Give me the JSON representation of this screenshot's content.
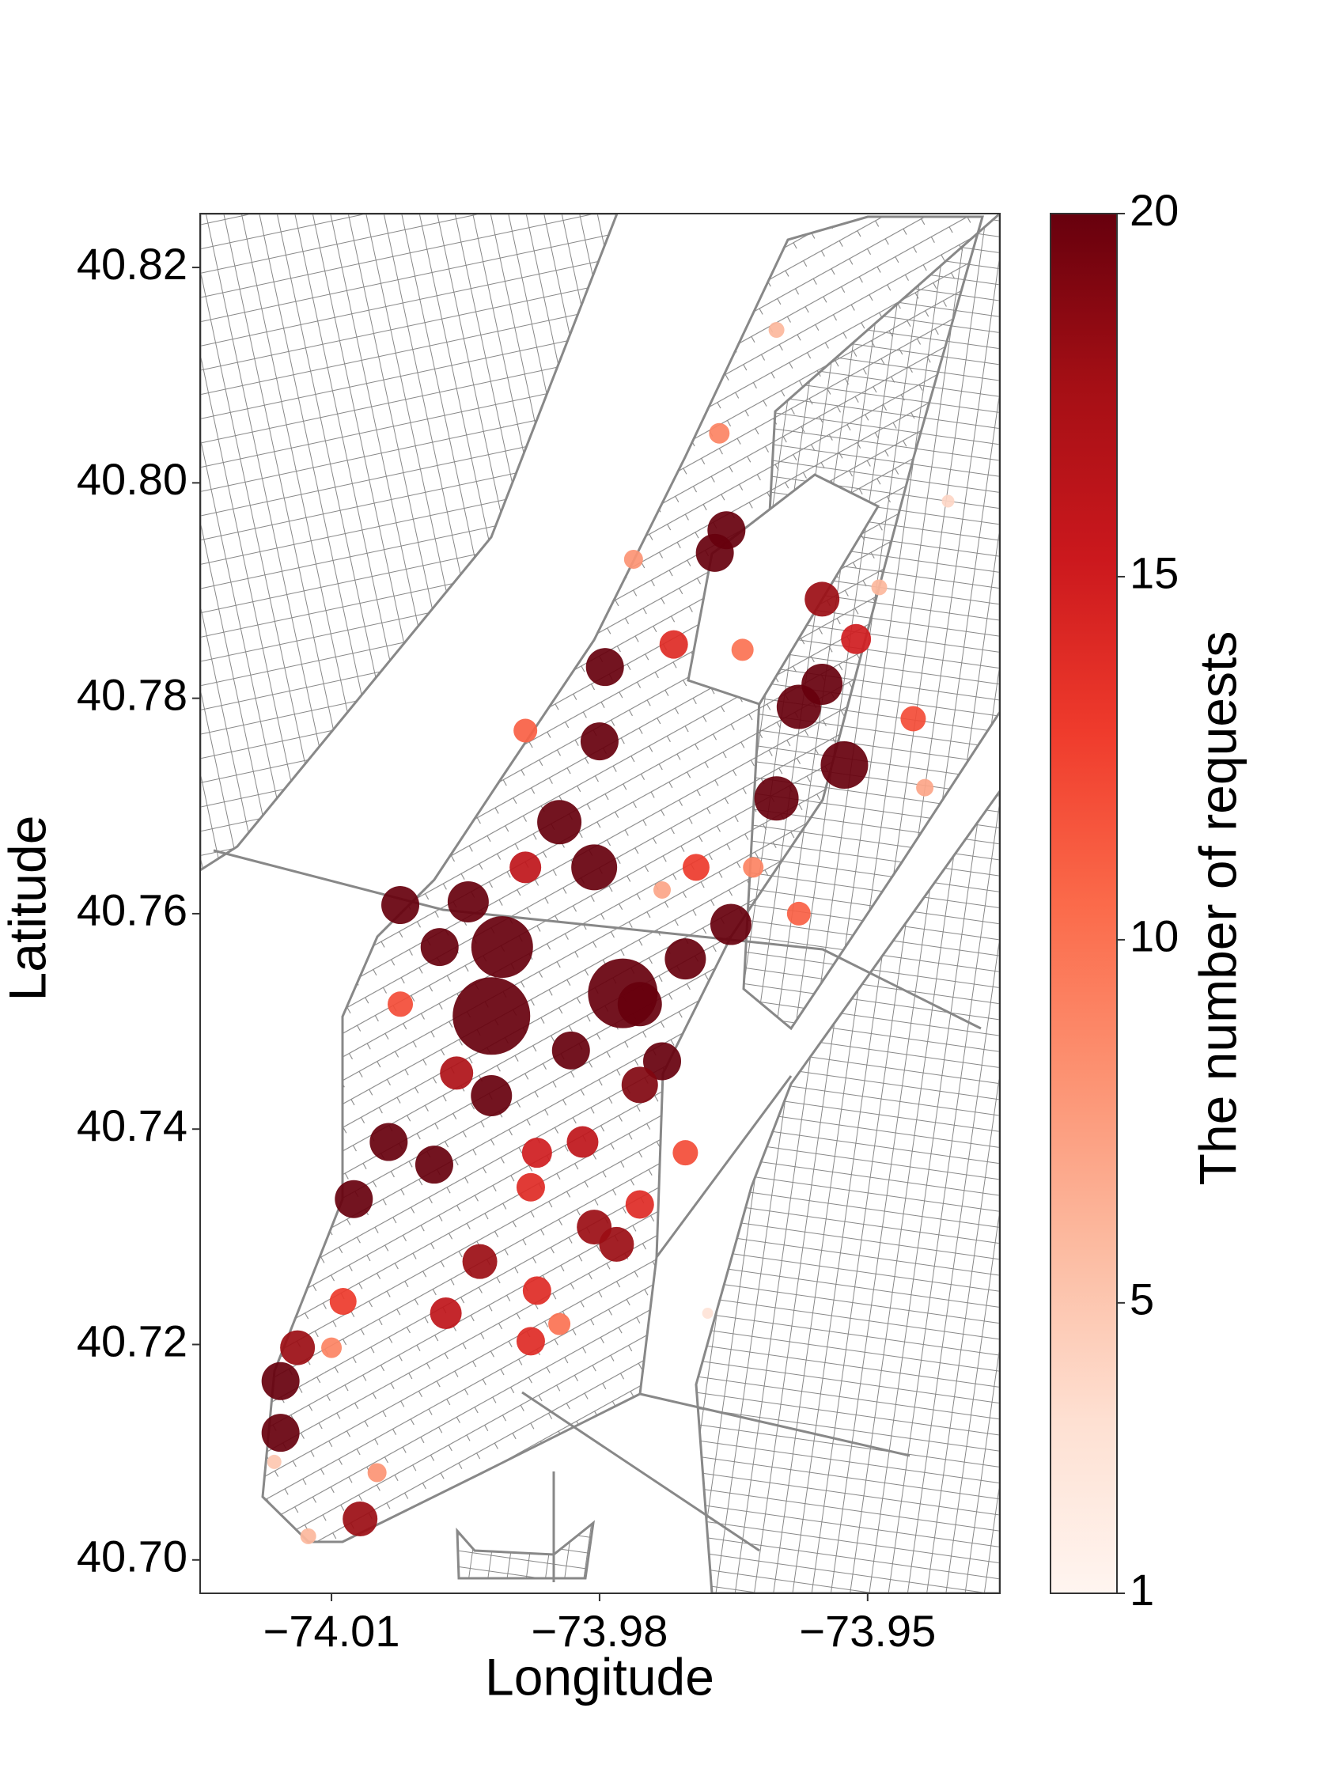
{
  "chart_data": {
    "type": "scatter",
    "x_label": "Longitude",
    "y_label": "Latitude",
    "xlim": [
      -74.0247,
      -73.9352
    ],
    "ylim": [
      40.6969,
      40.825
    ],
    "xticks": [
      {
        "value": -74.01,
        "label": "−74.01"
      },
      {
        "value": -73.98,
        "label": "−73.98"
      },
      {
        "value": -73.95,
        "label": "−73.95"
      }
    ],
    "yticks": [
      {
        "value": 40.7,
        "label": "40.70"
      },
      40.72,
      40.74,
      40.76,
      40.78,
      {
        "value": 40.8,
        "label": "40.80"
      },
      40.82
    ],
    "colormap": "Reds",
    "clim": [
      1,
      20
    ],
    "cticks": [
      1,
      5,
      10,
      15,
      20
    ],
    "colorbar_label": "The number of requests",
    "series": [
      {
        "x": [
          -73.9921,
          -73.9909,
          -73.9774,
          -73.9806,
          -73.9947,
          -73.9845,
          -73.9526,
          -73.9577,
          -73.9551,
          -73.9602,
          -73.9653,
          -73.9704,
          -73.9755,
          -73.973,
          -73.9832,
          -73.9921,
          -73.9985,
          -74.0036,
          -74.0075,
          -74.0157,
          -74.0157,
          -74.0138,
          -74.0068,
          -74.0023,
          -73.9979,
          -73.9658,
          -73.9671,
          -73.9794,
          -73.98,
          -73.9781,
          -73.9806,
          -73.9755,
          -73.9877,
          -73.9934,
          -73.9972,
          -73.9877,
          -73.9762,
          -73.9717,
          -73.964,
          -73.9551,
          -73.9487,
          -73.9449,
          -73.9436,
          -73.941,
          -73.9883,
          -73.9819,
          -73.9704,
          -73.9755,
          -74.0087,
          -74.01,
          -74.0126,
          -74.0049,
          -74.0164,
          -73.9845,
          -73.987,
          -73.9679,
          -73.9602,
          -73.9666,
          -73.9577,
          -73.9692,
          -73.9883,
          -73.9628,
          -73.9513,
          -73.973,
          -74.0023,
          -73.996,
          -73.987
        ],
        "y": [
          40.7505,
          40.7569,
          40.7526,
          40.7643,
          40.7611,
          40.7685,
          40.7738,
          40.7792,
          40.7813,
          40.7707,
          40.759,
          40.7558,
          40.7516,
          40.7463,
          40.7473,
          40.7431,
          40.7367,
          40.7388,
          40.7335,
          40.7166,
          40.7118,
          40.7197,
          40.7038,
          40.7608,
          40.7569,
          40.7956,
          40.7935,
          40.7829,
          40.776,
          40.7293,
          40.7309,
          40.733,
          40.7346,
          40.7277,
          40.7229,
          40.7203,
          40.7929,
          40.785,
          40.7845,
          40.7892,
          40.7903,
          40.7781,
          40.7717,
          40.7983,
          40.777,
          40.7388,
          40.7378,
          40.7441,
          40.724,
          40.7197,
          40.7022,
          40.7081,
          40.7091,
          40.7219,
          40.725,
          40.7229,
          40.8142,
          40.8046,
          40.76,
          40.7643,
          40.7643,
          40.7643,
          40.7855,
          40.7622,
          40.7516,
          40.7452,
          40.7378
        ],
        "values": [
          45,
          35,
          40,
          25,
          22,
          24,
          26,
          24,
          22,
          24,
          22,
          22,
          24,
          20,
          20,
          22,
          20,
          20,
          20,
          20,
          20,
          18,
          18,
          20,
          20,
          20,
          20,
          20,
          20,
          18,
          18,
          14,
          14,
          18,
          16,
          14,
          8,
          14,
          10,
          18,
          6,
          12,
          7,
          4,
          11,
          16,
          12,
          19,
          13,
          9,
          6,
          8,
          5,
          10,
          14,
          3,
          6,
          9,
          11,
          13,
          16,
          9,
          15,
          7,
          12,
          17,
          15
        ]
      }
    ]
  }
}
